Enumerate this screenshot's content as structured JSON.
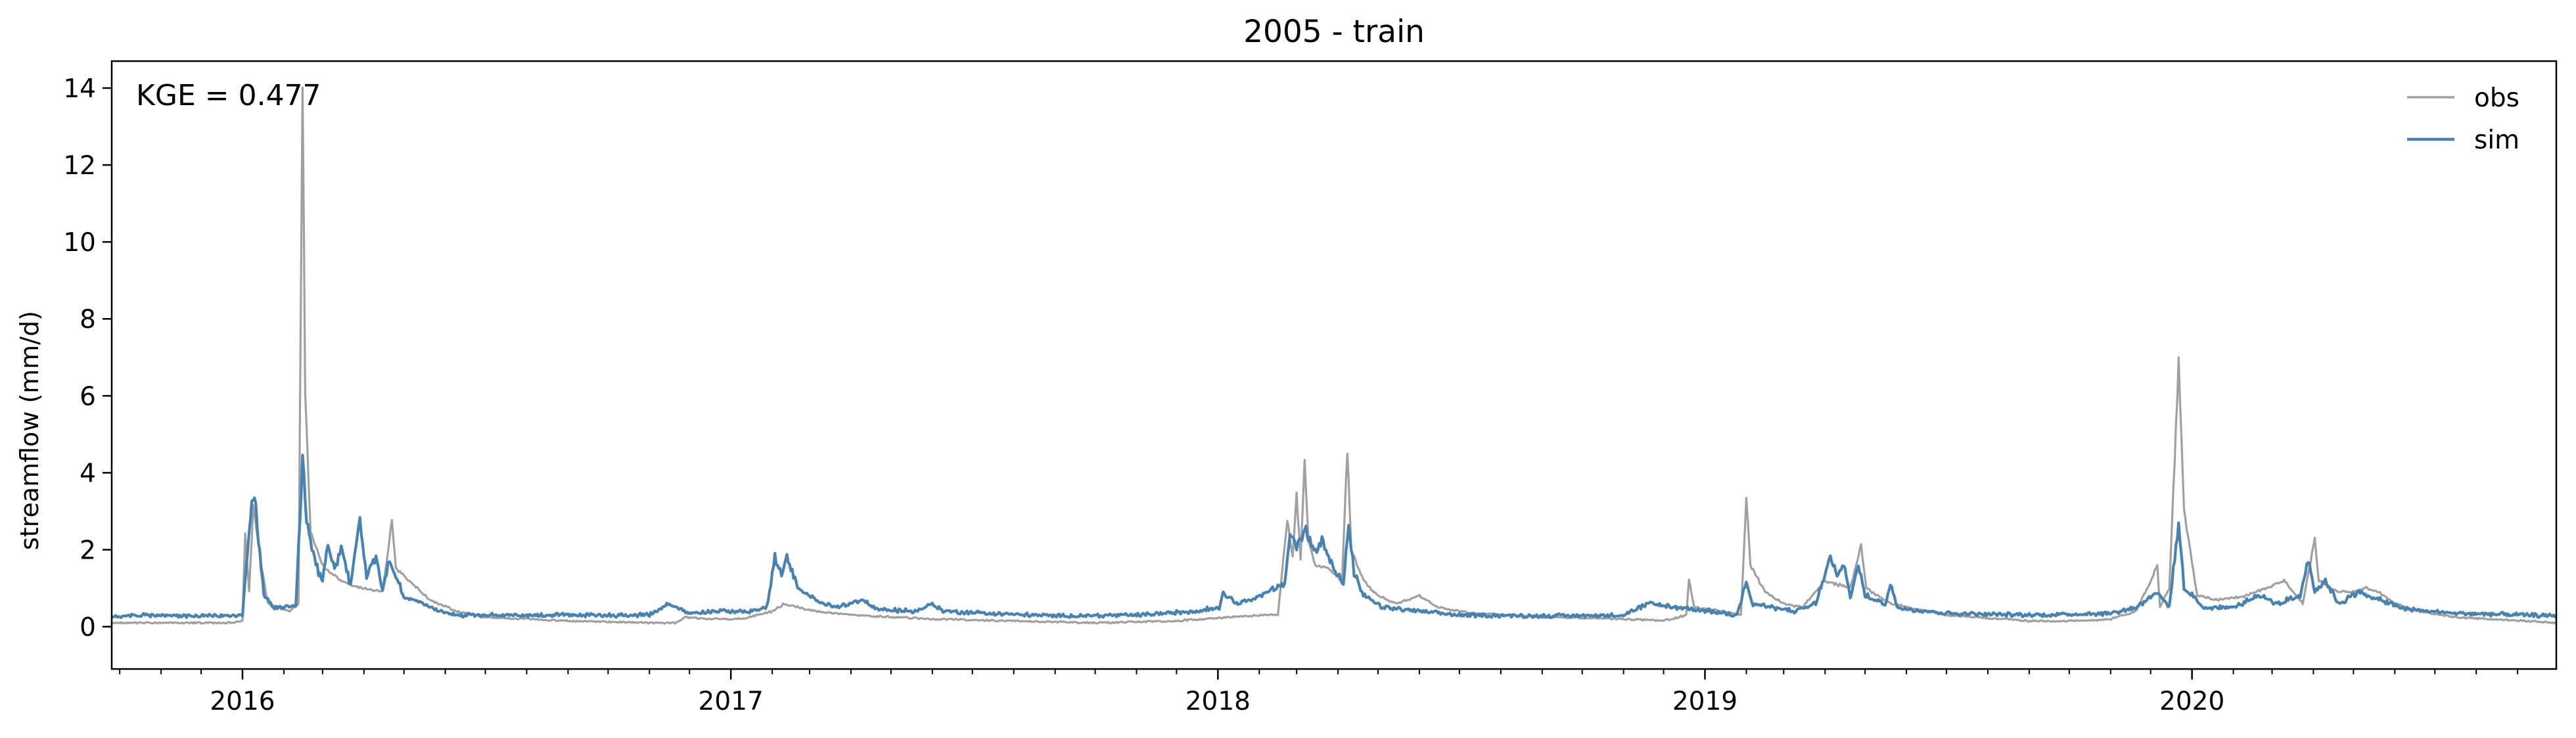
{
  "chart_data": {
    "type": "line",
    "title": "2005 - train",
    "xlabel": "",
    "ylabel": "streamflow (mm/d)",
    "annotation": "KGE = 0.477",
    "x_start": "2015-09-25",
    "x_end": "2020-09-30",
    "xticks": [
      "2016",
      "2017",
      "2018",
      "2019",
      "2020"
    ],
    "yticks": [
      "0",
      "2",
      "4",
      "6",
      "8",
      "10",
      "12",
      "14"
    ],
    "ylim": [
      -1.1,
      14.7
    ],
    "grid": false,
    "legend_position": "top-right",
    "series": [
      {
        "name": "obs",
        "color": "#a0a0a0",
        "points": [
          [
            "2015-09-25",
            0.1
          ],
          [
            "2015-12-20",
            0.1
          ],
          [
            "2016-01-01",
            0.15
          ],
          [
            "2016-01-03",
            2.4
          ],
          [
            "2016-01-06",
            0.9
          ],
          [
            "2016-01-09",
            3.1
          ],
          [
            "2016-01-12",
            2.4
          ],
          [
            "2016-01-15",
            1.6
          ],
          [
            "2016-01-20",
            0.6
          ],
          [
            "2016-02-05",
            0.4
          ],
          [
            "2016-02-12",
            0.6
          ],
          [
            "2016-02-15",
            14.3
          ],
          [
            "2016-02-17",
            6.0
          ],
          [
            "2016-02-21",
            2.5
          ],
          [
            "2016-03-01",
            1.6
          ],
          [
            "2016-03-10",
            1.3
          ],
          [
            "2016-03-20",
            1.1
          ],
          [
            "2016-04-01",
            1.0
          ],
          [
            "2016-04-15",
            0.9
          ],
          [
            "2016-04-22",
            2.8
          ],
          [
            "2016-04-25",
            1.5
          ],
          [
            "2016-05-05",
            1.2
          ],
          [
            "2016-05-20",
            0.7
          ],
          [
            "2016-06-10",
            0.4
          ],
          [
            "2016-07-01",
            0.25
          ],
          [
            "2016-09-01",
            0.15
          ],
          [
            "2016-11-01",
            0.1
          ],
          [
            "2016-11-20",
            0.1
          ],
          [
            "2016-11-28",
            0.25
          ],
          [
            "2016-12-15",
            0.2
          ],
          [
            "2017-01-10",
            0.2
          ],
          [
            "2017-02-01",
            0.4
          ],
          [
            "2017-02-10",
            0.6
          ],
          [
            "2017-03-05",
            0.4
          ],
          [
            "2017-04-01",
            0.3
          ],
          [
            "2017-06-01",
            0.2
          ],
          [
            "2017-08-01",
            0.15
          ],
          [
            "2017-10-01",
            0.1
          ],
          [
            "2017-12-01",
            0.15
          ],
          [
            "2018-01-10",
            0.25
          ],
          [
            "2018-02-01",
            0.3
          ],
          [
            "2018-02-15",
            0.3
          ],
          [
            "2018-02-22",
            2.8
          ],
          [
            "2018-02-26",
            1.8
          ],
          [
            "2018-03-01",
            3.4
          ],
          [
            "2018-03-04",
            1.8
          ],
          [
            "2018-03-07",
            4.3
          ],
          [
            "2018-03-10",
            2.2
          ],
          [
            "2018-03-15",
            1.6
          ],
          [
            "2018-03-25",
            1.5
          ],
          [
            "2018-04-04",
            1.2
          ],
          [
            "2018-04-08",
            4.6
          ],
          [
            "2018-04-11",
            2.0
          ],
          [
            "2018-04-20",
            1.2
          ],
          [
            "2018-05-01",
            0.8
          ],
          [
            "2018-05-15",
            0.6
          ],
          [
            "2018-06-01",
            0.8
          ],
          [
            "2018-06-15",
            0.5
          ],
          [
            "2018-07-10",
            0.35
          ],
          [
            "2018-09-01",
            0.25
          ],
          [
            "2018-11-01",
            0.2
          ],
          [
            "2018-12-01",
            0.15
          ],
          [
            "2018-12-18",
            0.3
          ],
          [
            "2018-12-20",
            1.2
          ],
          [
            "2018-12-24",
            0.5
          ],
          [
            "2019-01-15",
            0.4
          ],
          [
            "2019-01-28",
            0.3
          ],
          [
            "2019-02-01",
            3.4
          ],
          [
            "2019-02-04",
            1.6
          ],
          [
            "2019-02-15",
            0.9
          ],
          [
            "2019-03-01",
            0.6
          ],
          [
            "2019-03-15",
            0.5
          ],
          [
            "2019-04-01",
            1.2
          ],
          [
            "2019-04-20",
            1.0
          ],
          [
            "2019-04-28",
            2.1
          ],
          [
            "2019-05-02",
            1.0
          ],
          [
            "2019-05-20",
            0.6
          ],
          [
            "2019-07-01",
            0.3
          ],
          [
            "2019-09-01",
            0.15
          ],
          [
            "2019-10-10",
            0.15
          ],
          [
            "2019-11-01",
            0.2
          ],
          [
            "2019-11-20",
            0.4
          ],
          [
            "2019-12-01",
            1.2
          ],
          [
            "2019-12-06",
            1.6
          ],
          [
            "2019-12-08",
            0.5
          ],
          [
            "2019-12-15",
            1.0
          ],
          [
            "2019-12-22",
            6.9
          ],
          [
            "2019-12-26",
            3.0
          ],
          [
            "2020-01-05",
            0.8
          ],
          [
            "2020-01-20",
            0.7
          ],
          [
            "2020-02-10",
            0.8
          ],
          [
            "2020-02-25",
            1.0
          ],
          [
            "2020-03-10",
            1.2
          ],
          [
            "2020-03-24",
            0.6
          ],
          [
            "2020-04-02",
            2.3
          ],
          [
            "2020-04-05",
            1.2
          ],
          [
            "2020-04-20",
            0.9
          ],
          [
            "2020-05-01",
            0.9
          ],
          [
            "2020-05-10",
            1.0
          ],
          [
            "2020-05-20",
            0.9
          ],
          [
            "2020-06-01",
            0.6
          ],
          [
            "2020-06-20",
            0.4
          ],
          [
            "2020-07-15",
            0.25
          ],
          [
            "2020-09-30",
            0.1
          ]
        ]
      },
      {
        "name": "sim",
        "color": "#4682b4",
        "points": [
          [
            "2015-09-25",
            0.28
          ],
          [
            "2015-10-20",
            0.3
          ],
          [
            "2015-11-15",
            0.28
          ],
          [
            "2015-12-20",
            0.28
          ],
          [
            "2016-01-01",
            0.3
          ],
          [
            "2016-01-04",
            1.6
          ],
          [
            "2016-01-08",
            3.3
          ],
          [
            "2016-01-10",
            3.5
          ],
          [
            "2016-01-13",
            2.2
          ],
          [
            "2016-01-17",
            0.8
          ],
          [
            "2016-01-25",
            0.5
          ],
          [
            "2016-02-10",
            0.5
          ],
          [
            "2016-02-15",
            4.3
          ],
          [
            "2016-02-18",
            2.7
          ],
          [
            "2016-02-25",
            1.6
          ],
          [
            "2016-03-01",
            1.2
          ],
          [
            "2016-03-05",
            2.1
          ],
          [
            "2016-03-10",
            1.5
          ],
          [
            "2016-03-15",
            2.0
          ],
          [
            "2016-03-22",
            1.1
          ],
          [
            "2016-03-29",
            2.8
          ],
          [
            "2016-04-03",
            1.3
          ],
          [
            "2016-04-10",
            1.8
          ],
          [
            "2016-04-15",
            1.0
          ],
          [
            "2016-04-20",
            1.7
          ],
          [
            "2016-05-01",
            0.8
          ],
          [
            "2016-05-20",
            0.5
          ],
          [
            "2016-06-10",
            0.3
          ],
          [
            "2016-08-01",
            0.3
          ],
          [
            "2016-10-01",
            0.3
          ],
          [
            "2016-11-01",
            0.3
          ],
          [
            "2016-11-15",
            0.6
          ],
          [
            "2016-11-30",
            0.35
          ],
          [
            "2016-12-20",
            0.4
          ],
          [
            "2017-01-15",
            0.4
          ],
          [
            "2017-01-28",
            0.5
          ],
          [
            "2017-02-03",
            1.8
          ],
          [
            "2017-02-08",
            1.3
          ],
          [
            "2017-02-12",
            1.8
          ],
          [
            "2017-02-20",
            1.0
          ],
          [
            "2017-03-05",
            0.7
          ],
          [
            "2017-03-20",
            0.5
          ],
          [
            "2017-04-10",
            0.7
          ],
          [
            "2017-04-20",
            0.45
          ],
          [
            "2017-05-20",
            0.4
          ],
          [
            "2017-06-01",
            0.6
          ],
          [
            "2017-06-10",
            0.4
          ],
          [
            "2017-07-10",
            0.35
          ],
          [
            "2017-09-01",
            0.28
          ],
          [
            "2017-11-01",
            0.3
          ],
          [
            "2017-12-15",
            0.4
          ],
          [
            "2018-01-02",
            0.5
          ],
          [
            "2018-01-05",
            0.9
          ],
          [
            "2018-01-15",
            0.6
          ],
          [
            "2018-02-01",
            0.8
          ],
          [
            "2018-02-20",
            1.1
          ],
          [
            "2018-02-24",
            2.4
          ],
          [
            "2018-03-01",
            2.1
          ],
          [
            "2018-03-08",
            2.5
          ],
          [
            "2018-03-15",
            1.9
          ],
          [
            "2018-03-20",
            2.3
          ],
          [
            "2018-03-28",
            1.6
          ],
          [
            "2018-04-05",
            1.1
          ],
          [
            "2018-04-09",
            2.6
          ],
          [
            "2018-04-13",
            1.4
          ],
          [
            "2018-04-20",
            0.8
          ],
          [
            "2018-05-05",
            0.5
          ],
          [
            "2018-06-01",
            0.4
          ],
          [
            "2018-07-01",
            0.3
          ],
          [
            "2018-09-01",
            0.28
          ],
          [
            "2018-11-01",
            0.3
          ],
          [
            "2018-11-20",
            0.6
          ],
          [
            "2018-12-10",
            0.5
          ],
          [
            "2019-01-05",
            0.4
          ],
          [
            "2019-01-25",
            0.3
          ],
          [
            "2019-02-01",
            1.2
          ],
          [
            "2019-02-05",
            0.6
          ],
          [
            "2019-02-20",
            0.5
          ],
          [
            "2019-03-10",
            0.4
          ],
          [
            "2019-03-25",
            0.6
          ],
          [
            "2019-04-05",
            1.8
          ],
          [
            "2019-04-10",
            1.3
          ],
          [
            "2019-04-15",
            1.6
          ],
          [
            "2019-04-20",
            0.8
          ],
          [
            "2019-04-26",
            1.6
          ],
          [
            "2019-05-01",
            0.8
          ],
          [
            "2019-05-16",
            0.6
          ],
          [
            "2019-05-20",
            1.1
          ],
          [
            "2019-05-25",
            0.5
          ],
          [
            "2019-07-01",
            0.35
          ],
          [
            "2019-09-01",
            0.3
          ],
          [
            "2019-11-01",
            0.35
          ],
          [
            "2019-11-20",
            0.5
          ],
          [
            "2019-12-05",
            0.9
          ],
          [
            "2019-12-15",
            0.5
          ],
          [
            "2019-12-22",
            2.7
          ],
          [
            "2019-12-26",
            1.0
          ],
          [
            "2020-01-10",
            0.5
          ],
          [
            "2020-02-01",
            0.5
          ],
          [
            "2020-02-20",
            0.8
          ],
          [
            "2020-03-05",
            0.6
          ],
          [
            "2020-03-22",
            0.8
          ],
          [
            "2020-03-28",
            1.8
          ],
          [
            "2020-04-02",
            0.9
          ],
          [
            "2020-04-10",
            1.2
          ],
          [
            "2020-04-20",
            0.6
          ],
          [
            "2020-05-05",
            0.9
          ],
          [
            "2020-05-20",
            0.7
          ],
          [
            "2020-06-10",
            0.45
          ],
          [
            "2020-07-15",
            0.35
          ],
          [
            "2020-09-30",
            0.28
          ]
        ]
      }
    ]
  }
}
